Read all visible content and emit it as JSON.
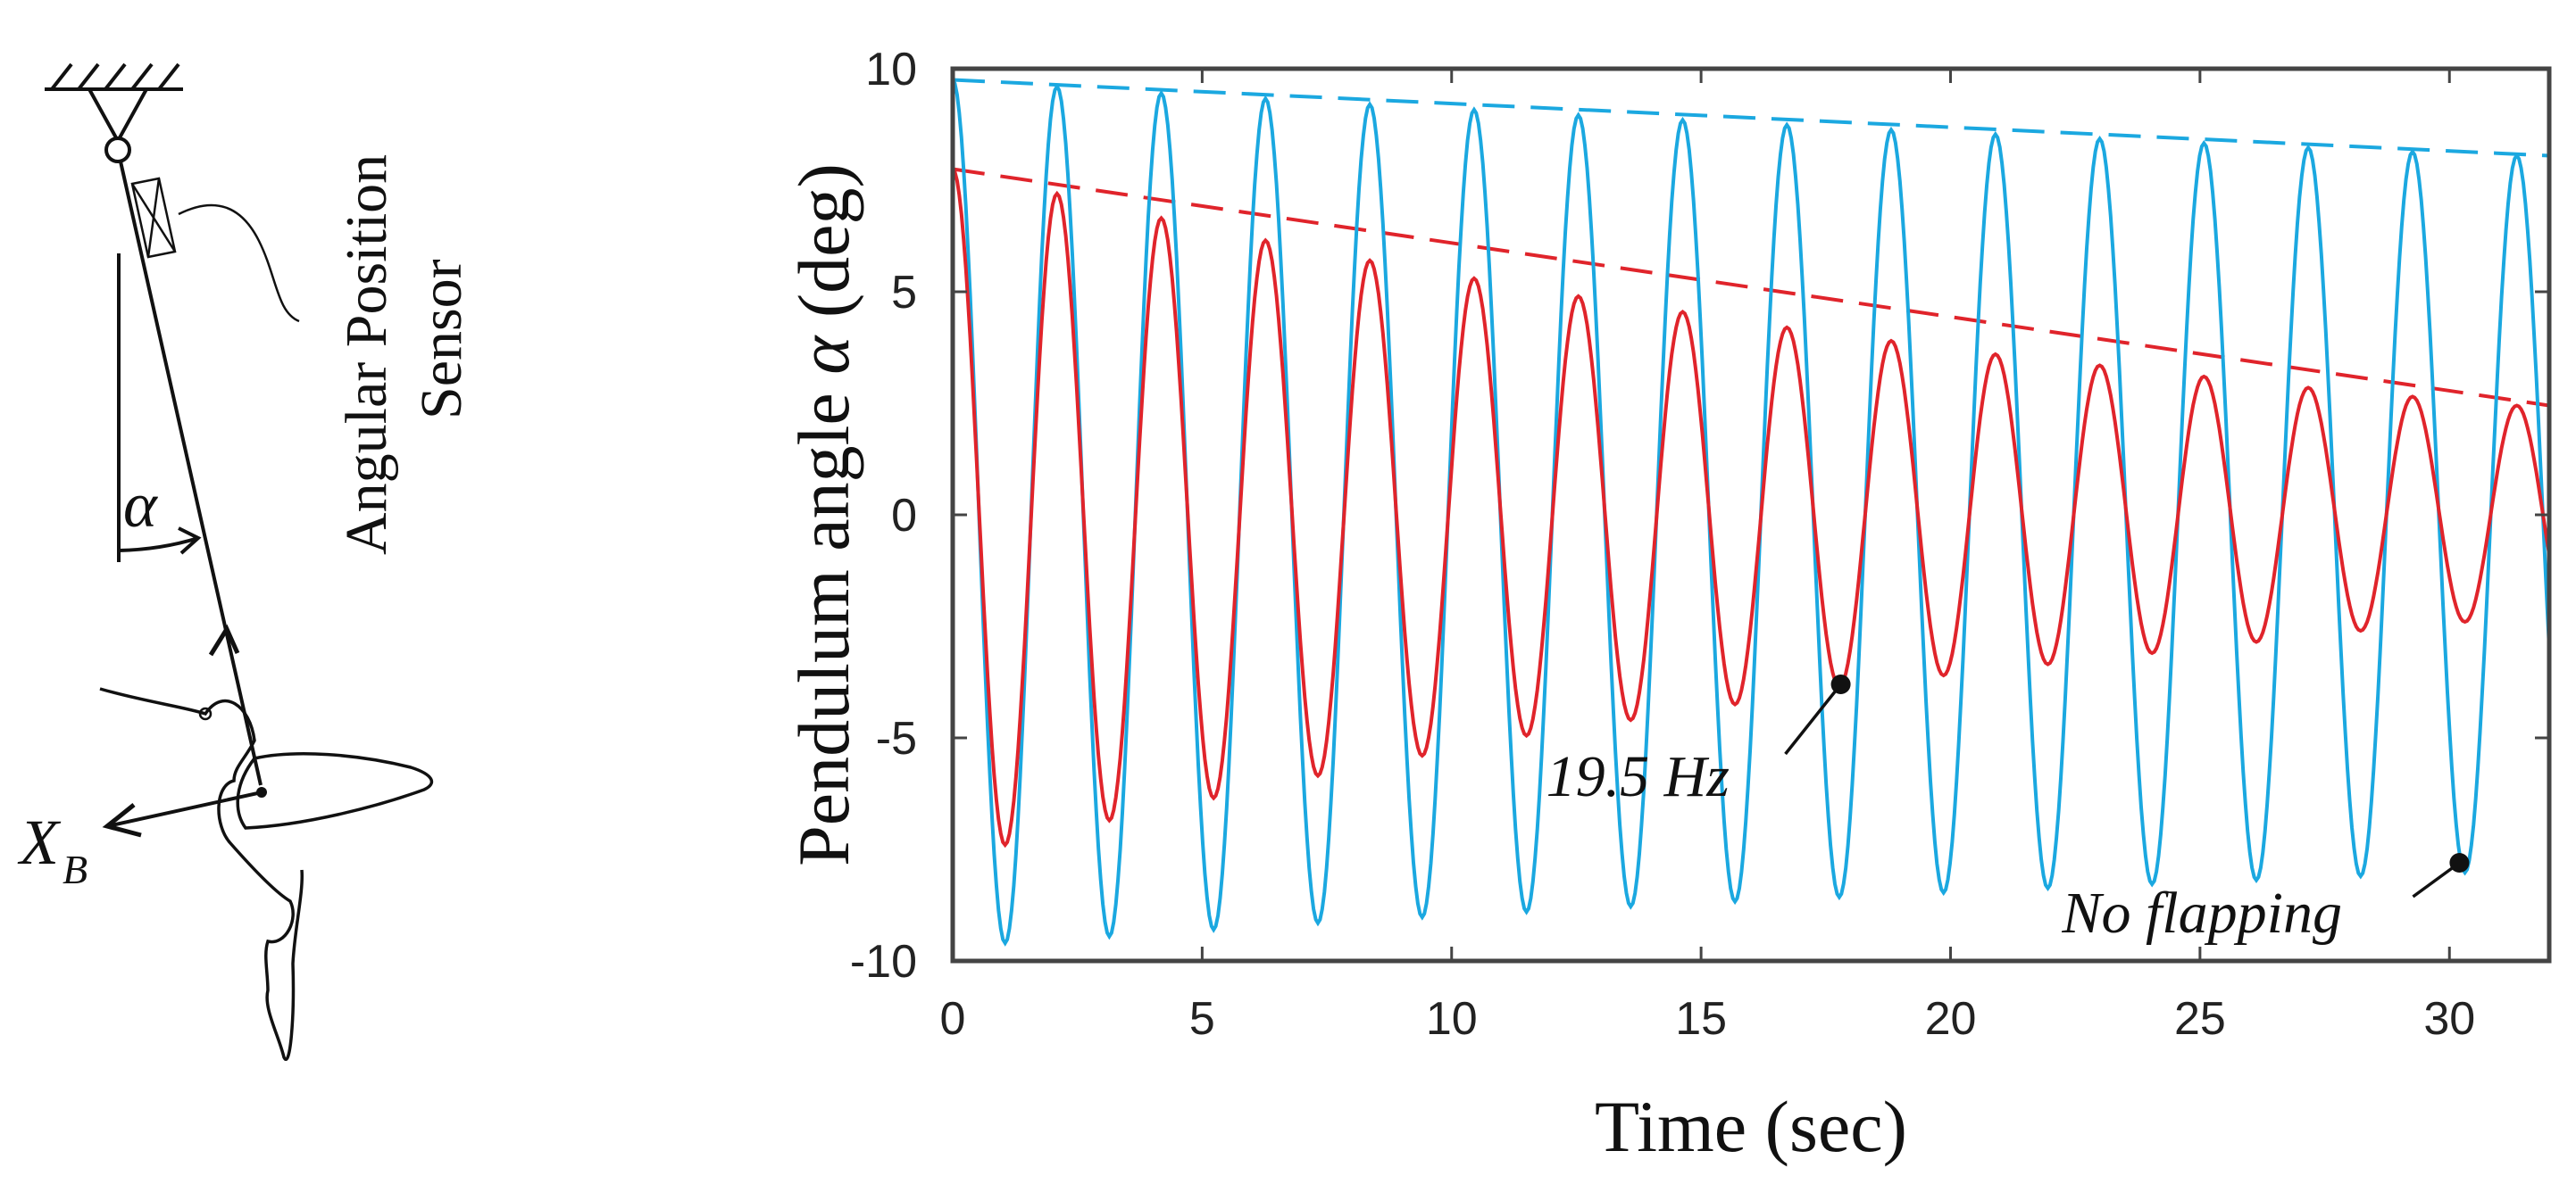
{
  "diagram": {
    "sensor_label_line1": "Angular Position",
    "sensor_label_line2": "Sensor",
    "angle_symbol": "α",
    "body_axis_symbol": "X",
    "body_axis_subscript": "B"
  },
  "chart_data": {
    "type": "line",
    "xlabel": "Time (sec)",
    "ylabel_prefix": "Pendulum angle ",
    "ylabel_symbol": "α",
    "ylabel_suffix": " (deg)",
    "xlim": [
      0,
      32
    ],
    "ylim": [
      -10,
      10
    ],
    "xticks": [
      0,
      5,
      10,
      15,
      20,
      25,
      30
    ],
    "yticks": [
      10,
      5,
      0,
      -5,
      -10
    ],
    "xtick_labels": [
      "0",
      "5",
      "10",
      "15",
      "20",
      "25",
      "30"
    ],
    "ytick_labels": [
      "10",
      "5",
      "0",
      "-5",
      "-10"
    ],
    "grid": false,
    "series": [
      {
        "name": "No flapping",
        "color": "#1BA8E0",
        "style": "oscillation",
        "period": 2.09,
        "peaks": {
          "t": [
            0,
            2.09,
            4.18,
            6.27,
            8.36,
            10.45,
            12.54,
            14.63,
            16.72,
            18.81,
            20.9,
            22.99,
            25.08,
            27.17,
            29.26,
            31.35
          ],
          "value": [
            9.75,
            9.6,
            9.45,
            9.33,
            9.2,
            9.08,
            8.96,
            8.85,
            8.74,
            8.63,
            8.53,
            8.43,
            8.33,
            8.23,
            8.14,
            8.05
          ]
        },
        "troughs": {
          "t": [
            1.05,
            3.14,
            5.23,
            7.32,
            9.41,
            11.5,
            13.59,
            15.68,
            17.77,
            19.86,
            21.95,
            24.04,
            26.13,
            28.22,
            30.31
          ],
          "value": [
            -9.6,
            -9.45,
            -9.3,
            -9.15,
            -9.02,
            -8.9,
            -8.78,
            -8.67,
            -8.57,
            -8.47,
            -8.37,
            -8.28,
            -8.19,
            -8.1,
            -8.02
          ]
        }
      },
      {
        "name": "19.5 Hz",
        "color": "#E0242B",
        "style": "oscillation",
        "period": 2.09,
        "peaks": {
          "t": [
            0,
            2.09,
            4.18,
            6.27,
            8.36,
            10.45,
            12.54,
            14.63,
            16.72,
            18.81,
            20.9,
            22.99,
            25.08,
            27.17,
            29.26,
            31.35
          ],
          "value": [
            7.75,
            7.2,
            6.65,
            6.15,
            5.7,
            5.3,
            4.9,
            4.55,
            4.2,
            3.9,
            3.6,
            3.35,
            3.1,
            2.85,
            2.65,
            2.45
          ]
        },
        "troughs": {
          "t": [
            1.05,
            3.14,
            5.23,
            7.32,
            9.41,
            11.5,
            13.59,
            15.68,
            17.77,
            19.86,
            21.95,
            24.04,
            26.13,
            28.22,
            30.31
          ],
          "value": [
            -7.4,
            -6.85,
            -6.35,
            -5.85,
            -5.4,
            -4.95,
            -4.6,
            -4.25,
            -3.85,
            -3.6,
            -3.35,
            -3.1,
            -2.85,
            -2.6,
            -2.4
          ]
        }
      }
    ],
    "envelopes": [
      {
        "series": "No flapping",
        "color": "#1BA8E0",
        "dash": true,
        "x": [
          0,
          32
        ],
        "y": [
          9.75,
          8.05
        ]
      },
      {
        "series": "19.5 Hz",
        "color": "#E0242B",
        "dash": true,
        "x": [
          0,
          32
        ],
        "y": [
          7.75,
          2.45
        ]
      }
    ],
    "annotations": [
      {
        "text": "19.5 Hz",
        "point": [
          17.8,
          -3.8
        ]
      },
      {
        "text": "No flapping",
        "point": [
          30.2,
          -7.8
        ]
      }
    ]
  }
}
